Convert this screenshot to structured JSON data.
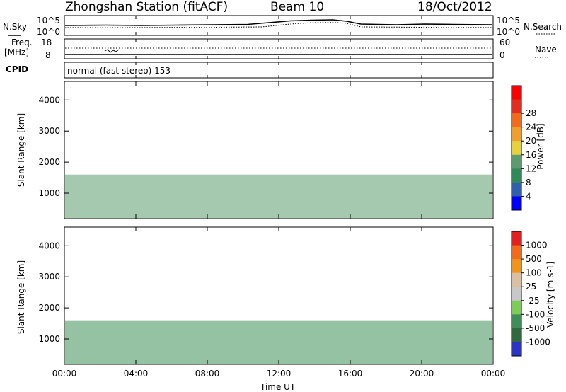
{
  "header": {
    "station": "Zhongshan Station (fitACF)",
    "beam": "Beam 10",
    "date": "18/Oct/2012"
  },
  "top_panels": {
    "nsky_label": "N.Sky",
    "nsearch_label": "N.Search",
    "freq_label_line1": "Freq.",
    "freq_label_line2": "[MHz]",
    "nave_label": "Nave",
    "cpid_label": "CPID",
    "cpid_value": "normal (fast stereo) 153",
    "noise_left_ticks": [
      "10^5",
      "10^0"
    ],
    "noise_right_ticks": [
      "10^5",
      "10^0"
    ],
    "freq_left_ticks": [
      "18",
      "8"
    ],
    "freq_right_ticks": [
      "60",
      "0"
    ]
  },
  "colors": {
    "power_scale": [
      "#0000ff",
      "#2f5fb0",
      "#2e8b57",
      "#5a9c6e",
      "#e8d23a",
      "#f0a02a",
      "#f26a1a",
      "#e62c1c",
      "#ff0000"
    ],
    "velocity_scale": [
      "#2a35c8",
      "#2f6a3e",
      "#3e8f55",
      "#7ccc55",
      "#c8c8c8",
      "#d8c0a0",
      "#f29418",
      "#f26a1a",
      "#e61e1e"
    ]
  },
  "chart_data": [
    {
      "type": "heatmap",
      "name": "power",
      "title": "",
      "xlabel": "",
      "ylabel": "Slant Range [km]",
      "xlim": [
        "00:00",
        "00:00"
      ],
      "ylim": [
        180,
        4600
      ],
      "y_ticks": [
        "1000",
        "2000",
        "3000",
        "4000"
      ],
      "colorbar_label": "Power [dB]",
      "colorbar_ticks": [
        "4",
        "8",
        "12",
        "16",
        "20",
        "24",
        "28"
      ],
      "features": [
        {
          "time_start": "00:00",
          "time_end": "24:00",
          "range_low": 200,
          "range_high": 1600,
          "description": "main echo band"
        }
      ]
    },
    {
      "type": "heatmap",
      "name": "velocity",
      "title": "",
      "xlabel": "Time UT",
      "ylabel": "Slant Range [km]",
      "xlim": [
        "00:00",
        "00:00"
      ],
      "ylim": [
        180,
        4600
      ],
      "x_ticks": [
        "00:00",
        "04:00",
        "08:00",
        "12:00",
        "16:00",
        "20:00",
        "00:00"
      ],
      "y_ticks": [
        "1000",
        "2000",
        "3000",
        "4000"
      ],
      "colorbar_label": "Velocity [m s-1]",
      "colorbar_ticks": [
        "1000",
        "500",
        "100",
        "25",
        "-25",
        "-100",
        "-500",
        "-1000"
      ]
    }
  ]
}
